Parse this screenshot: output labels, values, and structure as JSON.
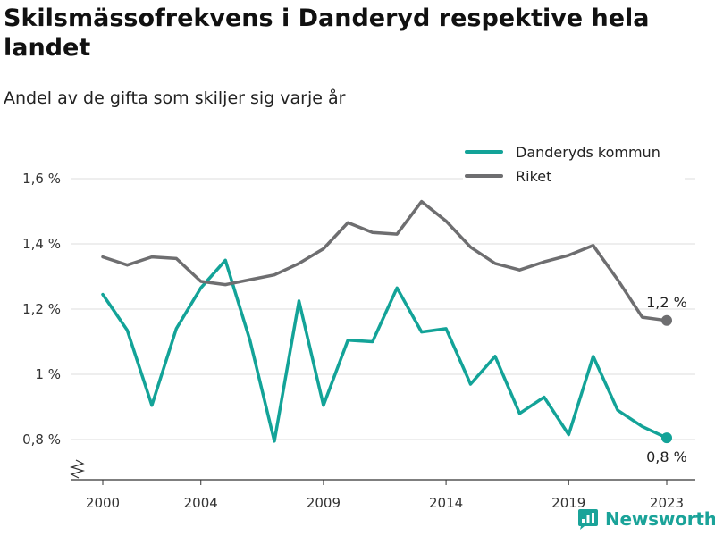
{
  "header": {
    "title": "Skilsmässofrekvens i Danderyd respektive hela landet",
    "subtitle": "Andel av de gifta som skiljer sig varje år"
  },
  "brand": {
    "name": "Newsworthy",
    "icon": "newsworthy-logo-icon",
    "color": "#1aa399"
  },
  "chart_data": {
    "type": "line",
    "title": "Skilsmässofrekvens i Danderyd respektive hela landet",
    "subtitle": "Andel av de gifta som skiljer sig varje år",
    "x": [
      2000,
      2001,
      2002,
      2003,
      2004,
      2005,
      2006,
      2007,
      2008,
      2009,
      2010,
      2011,
      2012,
      2013,
      2014,
      2015,
      2016,
      2017,
      2018,
      2019,
      2020,
      2021,
      2022,
      2023
    ],
    "xticks": [
      2000,
      2004,
      2009,
      2014,
      2019,
      2023
    ],
    "xtick_labels": [
      "2000",
      "2004",
      "2009",
      "2014",
      "2019",
      "2023"
    ],
    "yticks": [
      0.8,
      1.0,
      1.2,
      1.4,
      1.6
    ],
    "ytick_labels": [
      "0,8 %",
      "1 %",
      "1,2 %",
      "1,4 %",
      "1,6 %"
    ],
    "ylim": [
      0.7,
      1.7
    ],
    "xlim": [
      1999.3,
      2024.2
    ],
    "grid": true,
    "axis_break": true,
    "legend_position": "top-right",
    "series": [
      {
        "name": "Danderyds kommun",
        "color": "#13a398",
        "values": [
          1.245,
          1.135,
          0.905,
          1.14,
          1.265,
          1.35,
          1.105,
          0.795,
          1.225,
          0.905,
          1.105,
          1.1,
          1.265,
          1.13,
          1.14,
          0.97,
          1.055,
          0.88,
          0.93,
          0.815,
          1.055,
          0.89,
          0.84,
          0.805
        ],
        "end_label": "0,8 %"
      },
      {
        "name": "Riket",
        "color": "#6e6e70",
        "values": [
          1.36,
          1.335,
          1.36,
          1.355,
          1.285,
          1.275,
          1.29,
          1.305,
          1.34,
          1.385,
          1.465,
          1.435,
          1.43,
          1.53,
          1.47,
          1.39,
          1.34,
          1.32,
          1.345,
          1.365,
          1.395,
          1.29,
          1.175,
          1.165
        ],
        "end_label": "1,2 %"
      }
    ]
  }
}
